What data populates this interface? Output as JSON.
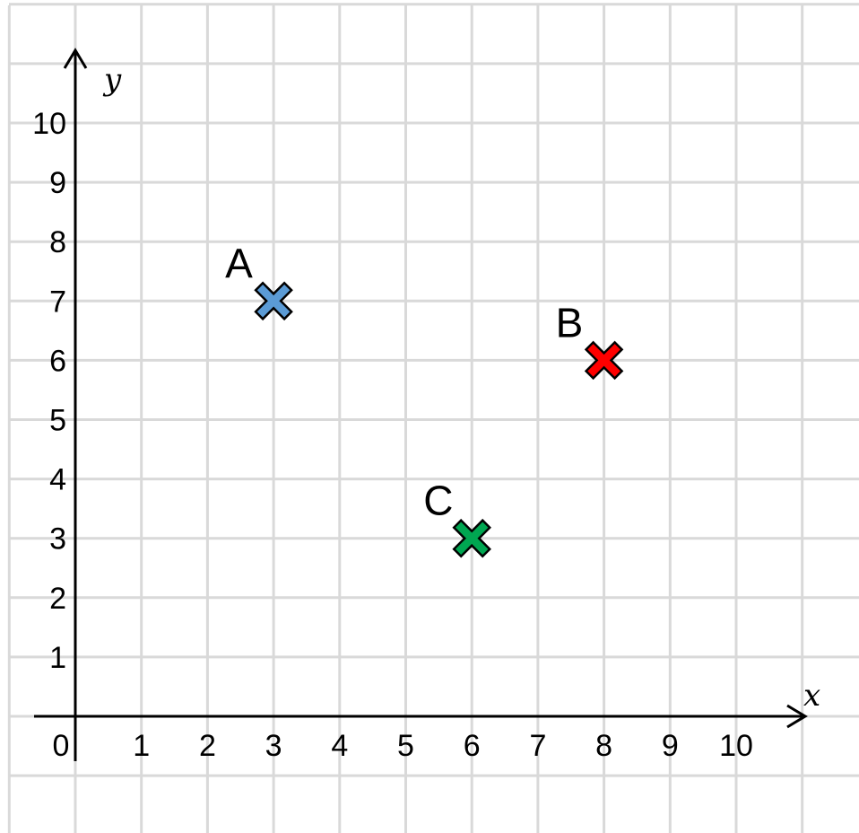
{
  "chart_data": {
    "type": "scatter",
    "title": "",
    "xlabel": "x",
    "ylabel": "y",
    "xlim": [
      -1,
      11
    ],
    "ylim": [
      -2,
      12
    ],
    "grid": true,
    "origin_label": "0",
    "x_ticks": [
      "1",
      "2",
      "3",
      "4",
      "5",
      "6",
      "7",
      "8",
      "9",
      "10"
    ],
    "y_ticks": [
      "1",
      "2",
      "3",
      "4",
      "5",
      "6",
      "7",
      "8",
      "9",
      "10"
    ],
    "points": [
      {
        "label": "A",
        "x": 3,
        "y": 7,
        "color": "#5b9bd5"
      },
      {
        "label": "B",
        "x": 8,
        "y": 6,
        "color": "#ff0000"
      },
      {
        "label": "C",
        "x": 6,
        "y": 3,
        "color": "#00a651"
      }
    ]
  }
}
